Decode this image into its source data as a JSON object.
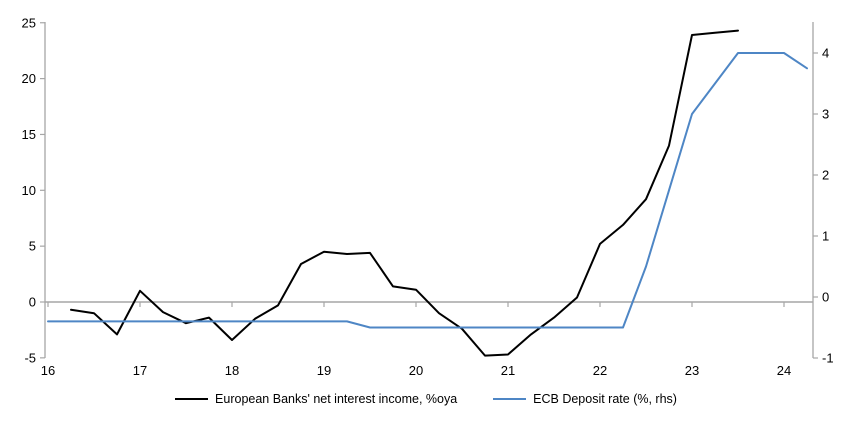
{
  "chart_data": {
    "type": "line",
    "title": "",
    "xlabel": "",
    "ylabel_left": "",
    "ylabel_right": "",
    "grid": "zero-line-only",
    "legend_position": "bottom-center",
    "x_axis": {
      "ticks": [
        16,
        17,
        18,
        19,
        20,
        21,
        22,
        23,
        24
      ],
      "range": [
        16,
        24.33
      ]
    },
    "y_axis_left": {
      "ticks": [
        25,
        20,
        15,
        10,
        5,
        0,
        -5
      ],
      "range": [
        -5,
        25
      ]
    },
    "y_axis_right": {
      "ticks": [
        4,
        3,
        2,
        1,
        0,
        -1
      ],
      "range": [
        -1,
        4.5
      ]
    },
    "series": [
      {
        "name": "European Banks' net interest income, %oya",
        "axis": "left",
        "color": "#000000",
        "x": [
          16.25,
          16.5,
          16.75,
          17.0,
          17.25,
          17.5,
          17.75,
          18.0,
          18.25,
          18.5,
          18.75,
          19.0,
          19.25,
          19.5,
          19.75,
          20.0,
          20.25,
          20.5,
          20.75,
          21.0,
          21.25,
          21.5,
          21.75,
          22.0,
          22.25,
          22.5,
          22.75,
          23.0,
          23.25,
          23.5
        ],
        "y": [
          -0.7,
          -1.0,
          -2.9,
          1.0,
          -0.9,
          -1.9,
          -1.4,
          -3.4,
          -1.5,
          -0.3,
          3.4,
          4.5,
          4.3,
          4.4,
          1.4,
          1.1,
          -1.0,
          -2.4,
          -4.8,
          -4.7,
          -2.9,
          -1.4,
          0.4,
          5.2,
          6.9,
          9.2,
          14.0,
          23.9,
          24.1,
          24.3
        ]
      },
      {
        "name": "ECB Deposit rate (%, rhs)",
        "axis": "right",
        "color": "#4e86c5",
        "x": [
          16.0,
          16.25,
          16.5,
          16.75,
          17.0,
          17.25,
          17.5,
          17.75,
          18.0,
          18.25,
          18.5,
          18.75,
          19.0,
          19.25,
          19.5,
          19.75,
          20.0,
          20.25,
          20.5,
          20.75,
          21.0,
          21.25,
          21.5,
          21.75,
          22.0,
          22.25,
          22.5,
          22.75,
          23.0,
          23.25,
          23.5,
          23.75,
          24.0,
          24.25
        ],
        "y": [
          -0.4,
          -0.4,
          -0.4,
          -0.4,
          -0.4,
          -0.4,
          -0.4,
          -0.4,
          -0.4,
          -0.4,
          -0.4,
          -0.4,
          -0.4,
          -0.4,
          -0.5,
          -0.5,
          -0.5,
          -0.5,
          -0.5,
          -0.5,
          -0.5,
          -0.5,
          -0.5,
          -0.5,
          -0.5,
          -0.5,
          0.5,
          1.75,
          3.0,
          3.5,
          4.0,
          4.0,
          4.0,
          3.75
        ]
      }
    ],
    "colors": {
      "axis_gray": "#a6a6a6",
      "zero_line_gray": "#a6a6a6",
      "text": "#000000"
    }
  }
}
